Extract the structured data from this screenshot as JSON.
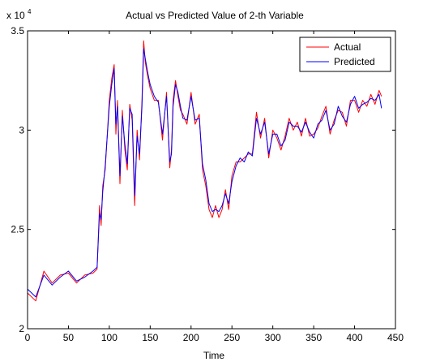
{
  "chart_data": {
    "type": "line",
    "title": "Actual vs Predicted Value of 2-th Variable",
    "xlabel": "Time",
    "ylabel": "",
    "xlim": [
      0,
      450
    ],
    "ylim": [
      20000,
      35000
    ],
    "x_ticks": [
      0,
      50,
      100,
      150,
      200,
      250,
      300,
      350,
      400,
      450
    ],
    "x_tick_labels": [
      "0",
      "50",
      "100",
      "150",
      "200",
      "250",
      "300",
      "350",
      "400",
      "450"
    ],
    "y_ticks": [
      20000,
      25000,
      30000,
      35000
    ],
    "y_tick_labels": [
      "2",
      "2.5",
      "3",
      "3.5"
    ],
    "y_multiplier": {
      "base": "x 10",
      "exponent": "4"
    },
    "grid": false,
    "legend_position": "top-right",
    "colors": {
      "Actual": "#ff0000",
      "Predicted": "#0000ff"
    },
    "x": [
      0,
      10,
      20,
      30,
      40,
      50,
      60,
      70,
      80,
      85,
      88,
      90,
      92,
      95,
      100,
      103,
      106,
      108,
      110,
      113,
      116,
      119,
      122,
      125,
      128,
      131,
      134,
      137,
      140,
      142,
      144,
      147,
      150,
      155,
      160,
      165,
      170,
      174,
      176,
      178,
      181,
      184,
      187,
      190,
      195,
      200,
      205,
      210,
      214,
      218,
      222,
      226,
      230,
      234,
      238,
      242,
      246,
      250,
      255,
      260,
      265,
      270,
      275,
      280,
      285,
      290,
      295,
      300,
      305,
      310,
      315,
      320,
      325,
      330,
      335,
      340,
      345,
      350,
      355,
      360,
      365,
      370,
      375,
      380,
      385,
      390,
      395,
      400,
      405,
      410,
      415,
      420,
      425,
      430,
      433
    ],
    "series": [
      {
        "name": "Actual",
        "values": [
          21800,
          21400,
          22900,
          22300,
          22700,
          22800,
          22300,
          22700,
          22800,
          23000,
          26200,
          25200,
          27200,
          28000,
          31500,
          32600,
          33300,
          29800,
          31500,
          27300,
          31000,
          29000,
          28000,
          31300,
          30500,
          26200,
          30000,
          28500,
          31500,
          34500,
          33400,
          32700,
          32100,
          31500,
          31500,
          29500,
          31900,
          28100,
          29000,
          31500,
          32500,
          31700,
          31000,
          30800,
          30300,
          31900,
          30300,
          30800,
          28000,
          27200,
          26000,
          25600,
          26200,
          25600,
          26000,
          27000,
          26000,
          27700,
          28400,
          28400,
          28600,
          28800,
          28800,
          30900,
          29600,
          30600,
          28600,
          30000,
          29600,
          29000,
          29700,
          30600,
          30000,
          30400,
          29700,
          30600,
          29700,
          29800,
          30100,
          30700,
          31200,
          29800,
          30500,
          31000,
          30900,
          30200,
          31500,
          31500,
          30900,
          31500,
          31200,
          31800,
          31300,
          32000,
          31700
        ]
      },
      {
        "name": "Predicted",
        "values": [
          22000,
          21600,
          22700,
          22200,
          22600,
          22900,
          22400,
          22600,
          22900,
          23100,
          25800,
          25500,
          26900,
          28200,
          31200,
          32300,
          33100,
          30300,
          31200,
          27700,
          30700,
          29300,
          28300,
          31100,
          30800,
          26700,
          29700,
          28800,
          31200,
          34100,
          33600,
          32900,
          32300,
          31700,
          31400,
          29800,
          31700,
          28400,
          28800,
          31200,
          32300,
          31900,
          31200,
          30600,
          30500,
          31700,
          30500,
          30600,
          28300,
          27500,
          26300,
          25900,
          26000,
          25900,
          26200,
          26800,
          26300,
          27400,
          28200,
          28600,
          28400,
          28900,
          28700,
          30600,
          29800,
          30400,
          28800,
          29800,
          29800,
          29200,
          29500,
          30400,
          30200,
          30200,
          29900,
          30400,
          29900,
          29600,
          30300,
          30500,
          31000,
          30000,
          30300,
          31200,
          30700,
          30400,
          31300,
          31700,
          31100,
          31300,
          31400,
          31600,
          31500,
          31800,
          31100
        ]
      }
    ]
  }
}
